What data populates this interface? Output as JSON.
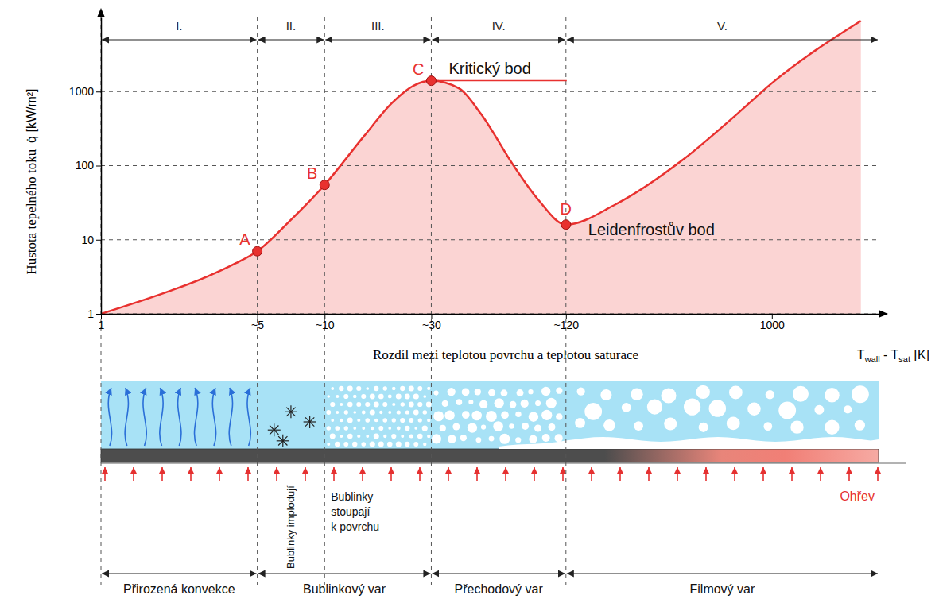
{
  "chart_data": {
    "type": "line",
    "x_label": "Rozdíl mezi teplotou povrchu a teplotou saturace",
    "x_unit_parts": [
      "T",
      "wall",
      " - T",
      "sat",
      " [K]"
    ],
    "y_label": "Hustota tepelného toku",
    "y_unit": "q̇ [kW/m²]",
    "x": [
      1,
      2,
      3,
      4,
      5,
      7,
      10,
      15,
      20,
      25,
      30,
      40,
      50,
      70,
      90,
      120,
      200,
      400,
      700,
      1000,
      2500
    ],
    "values": [
      1,
      2,
      3.2,
      4.8,
      7,
      18,
      55,
      250,
      700,
      1200,
      1400,
      1100,
      500,
      100,
      35,
      16,
      30,
      120,
      500,
      1300,
      9000
    ],
    "color": "#e8312f",
    "log": true,
    "xlim": [
      1,
      3000
    ],
    "ylim": [
      1,
      10000
    ],
    "xticks": [
      1,
      {
        "value": 5,
        "label": "~5"
      },
      {
        "value": 10,
        "label": "~10"
      },
      {
        "value": 30,
        "label": "~30"
      },
      {
        "value": 120,
        "label": "~120"
      },
      1000
    ],
    "yticks": [
      1,
      10,
      100,
      1000
    ],
    "grid": true,
    "points": {
      "labels": [
        "A",
        "B",
        "C",
        "D"
      ],
      "x": [
        5,
        10,
        30,
        120
      ],
      "values": [
        7,
        55,
        1400,
        16
      ],
      "color": "#e8312f"
    },
    "annotations": [
      {
        "text": "Kritický bod",
        "x": 30,
        "y": 1400
      },
      {
        "text": "Leidenfrostův bod",
        "x": 120,
        "y": 16
      }
    ],
    "regions": [
      {
        "label": "I.",
        "from": 1,
        "to": 5
      },
      {
        "label": "II.",
        "from": 5,
        "to": 10
      },
      {
        "label": "III.",
        "from": 10,
        "to": 30
      },
      {
        "label": "IV.",
        "from": 30,
        "to": 120
      },
      {
        "label": "V.",
        "from": 120,
        "to": 3000
      }
    ],
    "schematic": {
      "regimes": [
        {
          "label": "Přirozená konvekce",
          "from": 1,
          "to": 5
        },
        {
          "label": "Bublinkový var",
          "from": 5,
          "to": 30
        },
        {
          "label": "Přechodový var",
          "from": 30,
          "to": 120
        },
        {
          "label": "Filmový var",
          "from": 120,
          "to": 3000
        }
      ],
      "notes": [
        {
          "text": "Bublinky implodují",
          "from": 5,
          "to": 10
        },
        {
          "text": "Bublinky stoupají k povrchu",
          "from": 10,
          "to": 30
        }
      ],
      "heating": "Ohřev"
    }
  }
}
